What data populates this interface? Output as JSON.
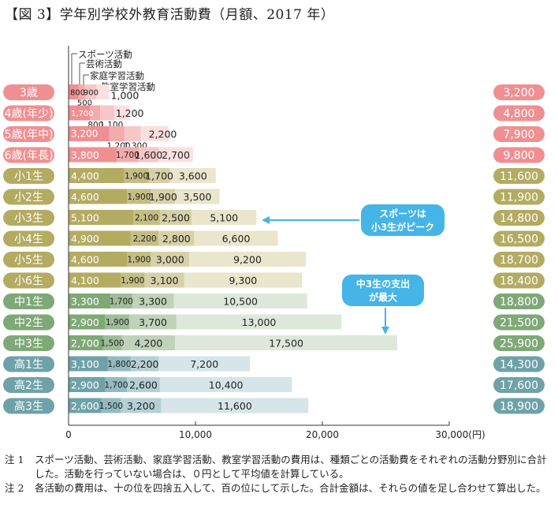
{
  "title": "【図 3】学年別学校外教育活動費（月額、2017 年）",
  "legend": [
    {
      "label": "スポーツ活動"
    },
    {
      "label": "芸術活動"
    },
    {
      "label": "家庭学習活動"
    },
    {
      "label": "教室学習活動"
    }
  ],
  "callouts": [
    {
      "text": [
        "スポーツは",
        "小3生がピーク"
      ]
    },
    {
      "text": [
        "中3生の支出",
        "が最大"
      ]
    }
  ],
  "notes": [
    {
      "key": "注 1",
      "text": "スポーツ活動、芸術活動、家庭学習活動、教室学習活動の費用は、種類ごとの活動費をそれぞれの活動分野別に合計した。活動を行っていない場合は、０円として平均値を計算している。"
    },
    {
      "key": "注 2",
      "text": "各活動の費用は、十の位を四捨五入して、百の位にして示した。合計金額は、それらの値を足し合わせて算出した。"
    }
  ],
  "chart_data": {
    "type": "bar",
    "orientation": "horizontal",
    "stacked": true,
    "xlim": [
      0,
      30000
    ],
    "x_ticks": [
      "0",
      "10,000",
      "20,000",
      "30,000(円)"
    ],
    "grid": false,
    "categories": [
      "3歳",
      "4歳(年少)",
      "5歳(年中)",
      "6歳(年長)",
      "小1生",
      "小2生",
      "小3生",
      "小4生",
      "小5生",
      "小6生",
      "中1生",
      "中2生",
      "中3生",
      "高1生",
      "高2生",
      "高3生"
    ],
    "series": [
      {
        "name": "スポーツ活動",
        "values": [
          800,
          1700,
          3200,
          3800,
          4400,
          4600,
          5100,
          4900,
          4600,
          4100,
          3300,
          2900,
          2700,
          3100,
          2900,
          2600
        ]
      },
      {
        "name": "芸術活動",
        "values": [
          500,
          800,
          1200,
          1700,
          1900,
          1900,
          2100,
          2200,
          1900,
          1900,
          1700,
          1900,
          1500,
          1800,
          1700,
          1500
        ]
      },
      {
        "name": "家庭学習活動",
        "values": [
          900,
          1100,
          1300,
          1600,
          1700,
          1900,
          2500,
          2800,
          3000,
          3100,
          3300,
          3700,
          4200,
          2200,
          2600,
          3200
        ]
      },
      {
        "name": "教室学習活動",
        "values": [
          1000,
          1200,
          2200,
          2700,
          3600,
          3500,
          5100,
          6600,
          9200,
          9300,
          10500,
          13000,
          17500,
          7200,
          10400,
          11600
        ]
      }
    ],
    "value_labels": [
      [
        "800",
        "500",
        "900",
        "1,000"
      ],
      [
        "1,700",
        "800",
        "1,100",
        "1,200"
      ],
      [
        "3,200",
        "1,200",
        "1,300",
        "2,200"
      ],
      [
        "3,800",
        "1,700",
        "1,600",
        "2,700"
      ],
      [
        "4,400",
        "1,900",
        "1,700",
        "3,600"
      ],
      [
        "4,600",
        "1,900",
        "1,900",
        "3,500"
      ],
      [
        "5,100",
        "2,100",
        "2,500",
        "5,100"
      ],
      [
        "4,900",
        "2,200",
        "2,800",
        "6,600"
      ],
      [
        "4,600",
        "1,900",
        "3,000",
        "9,200"
      ],
      [
        "4,100",
        "1,900",
        "3,100",
        "9,300"
      ],
      [
        "3,300",
        "1,700",
        "3,300",
        "10,500"
      ],
      [
        "2,900",
        "1,900",
        "3,700",
        "13,000"
      ],
      [
        "2,700",
        "1,500",
        "4,200",
        "17,500"
      ],
      [
        "3,100",
        "1,800",
        "2,200",
        "7,200"
      ],
      [
        "2,900",
        "1,700",
        "2,600",
        "10,400"
      ],
      [
        "2,600",
        "1,500",
        "3,200",
        "11,600"
      ]
    ],
    "totals": [
      "3,200",
      "4,800",
      "7,900",
      "9,800",
      "11,600",
      "11,900",
      "14,800",
      "16,500",
      "18,700",
      "18,400",
      "18,800",
      "21,500",
      "25,900",
      "14,300",
      "17,600",
      "18,900"
    ]
  },
  "colors": {
    "preschool": [
      "#ef8f91",
      "#f3abac",
      "#f7c7c7",
      "#fbe0e0"
    ],
    "elementary": [
      "#b4ab62",
      "#c5be84",
      "#d6d1a8",
      "#e9e6cc"
    ],
    "juniorhigh": [
      "#7fa877",
      "#9fbe98",
      "#bfd3b9",
      "#dde8da"
    ],
    "highschool": [
      "#6fa2a8",
      "#93bac0",
      "#b5d0d4",
      "#d6e6e8"
    ],
    "callout": "#45b4e6"
  }
}
